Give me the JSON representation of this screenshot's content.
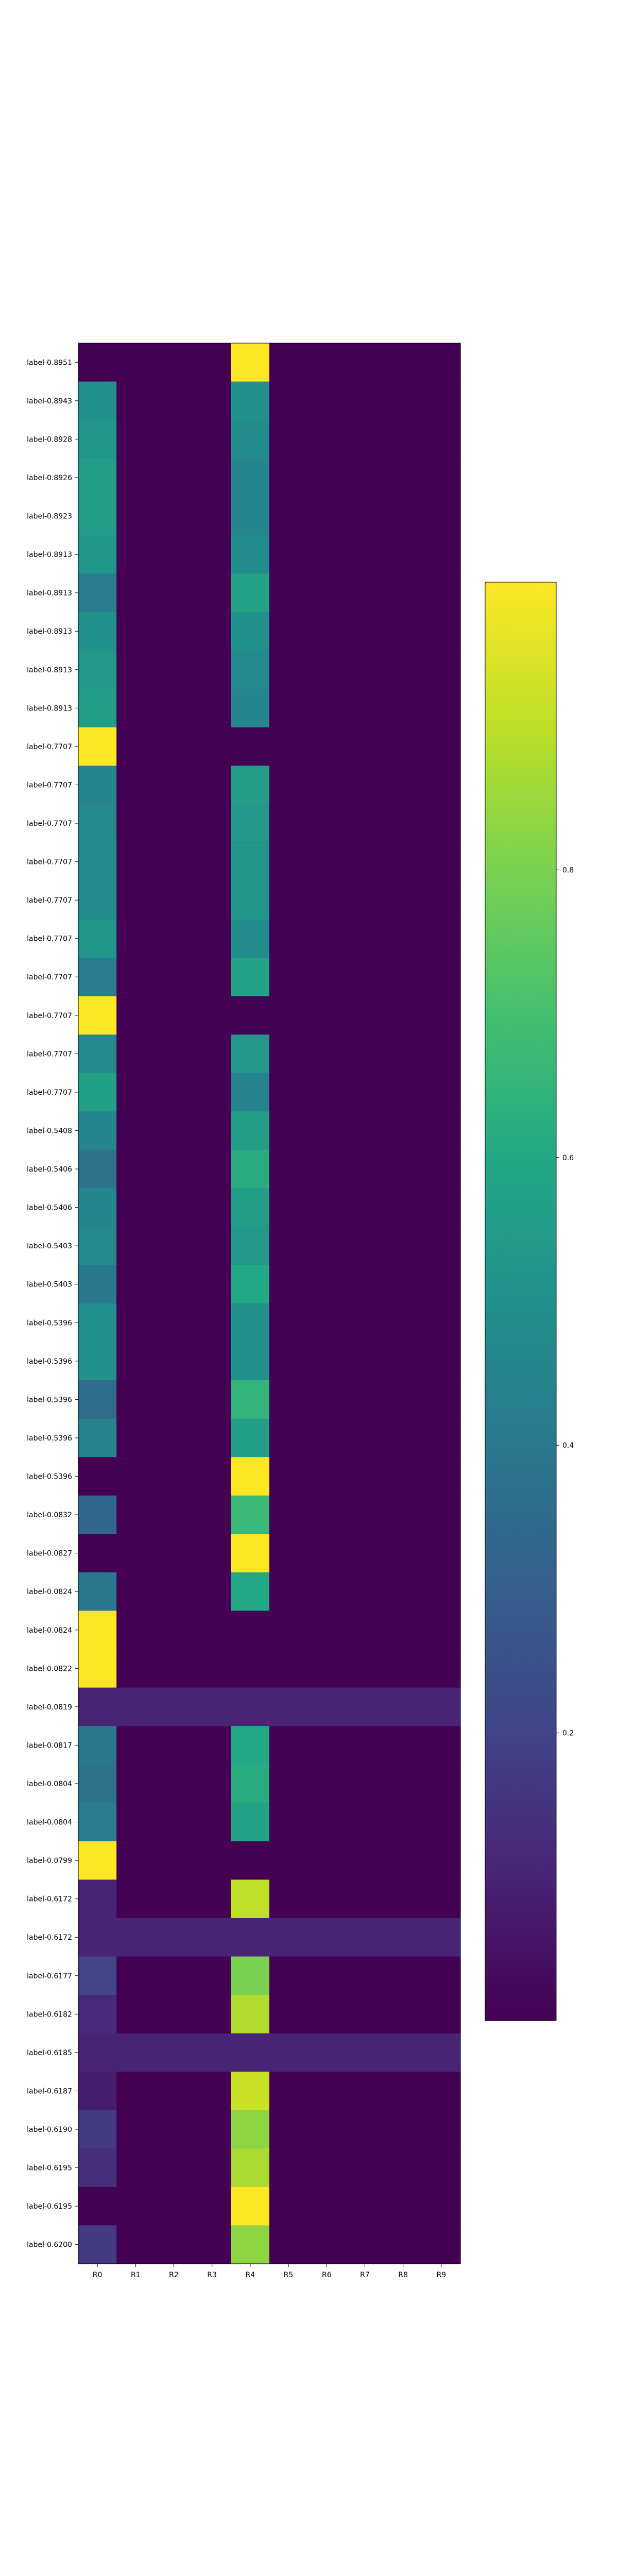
{
  "chart_data": {
    "type": "heatmap",
    "title": "",
    "xlabel": "",
    "ylabel": "",
    "colormap": "viridis",
    "colorbar": {
      "range": [
        0.0,
        1.0
      ],
      "ticks": [
        0.2,
        0.4,
        0.6,
        0.8
      ]
    },
    "x": [
      "R0",
      "R1",
      "R2",
      "R3",
      "R4",
      "R5",
      "R6",
      "R7",
      "R8",
      "R9"
    ],
    "y": [
      "label-0.8951",
      "label-0.8943",
      "label-0.8928",
      "label-0.8926",
      "label-0.8923",
      "label-0.8913",
      "label-0.8913",
      "label-0.8913",
      "label-0.8913",
      "label-0.8913",
      "label-0.7707",
      "label-0.7707",
      "label-0.7707",
      "label-0.7707",
      "label-0.7707",
      "label-0.7707",
      "label-0.7707",
      "label-0.7707",
      "label-0.7707",
      "label-0.7707",
      "label-0.5408",
      "label-0.5406",
      "label-0.5406",
      "label-0.5403",
      "label-0.5403",
      "label-0.5396",
      "label-0.5396",
      "label-0.5396",
      "label-0.5396",
      "label-0.5396",
      "label-0.0832",
      "label-0.0827",
      "label-0.0824",
      "label-0.0824",
      "label-0.0822",
      "label-0.0819",
      "label-0.0817",
      "label-0.0804",
      "label-0.0804",
      "label-0.0799",
      "label-0.6172",
      "label-0.6172",
      "label-0.6177",
      "label-0.6182",
      "label-0.6185",
      "label-0.6187",
      "label-0.6190",
      "label-0.6195",
      "label-0.6195",
      "label-0.6200"
    ],
    "values": [
      [
        0.0,
        0,
        0,
        0,
        1.0,
        0,
        0,
        0,
        0,
        0
      ],
      [
        0.5,
        0,
        0,
        0,
        0.5,
        0,
        0,
        0,
        0,
        0
      ],
      [
        0.52,
        0,
        0,
        0,
        0.48,
        0,
        0,
        0,
        0,
        0
      ],
      [
        0.55,
        0,
        0,
        0,
        0.45,
        0,
        0,
        0,
        0,
        0
      ],
      [
        0.55,
        0,
        0,
        0,
        0.45,
        0,
        0,
        0,
        0,
        0
      ],
      [
        0.52,
        0,
        0,
        0,
        0.48,
        0,
        0,
        0,
        0,
        0
      ],
      [
        0.42,
        0,
        0,
        0,
        0.58,
        0,
        0,
        0,
        0,
        0
      ],
      [
        0.5,
        0,
        0,
        0,
        0.5,
        0,
        0,
        0,
        0,
        0
      ],
      [
        0.53,
        0,
        0,
        0,
        0.47,
        0,
        0,
        0,
        0,
        0
      ],
      [
        0.55,
        0,
        0,
        0,
        0.45,
        0,
        0,
        0,
        0,
        0
      ],
      [
        1.0,
        0,
        0,
        0,
        0.0,
        0,
        0,
        0,
        0,
        0
      ],
      [
        0.45,
        0,
        0,
        0,
        0.55,
        0,
        0,
        0,
        0,
        0
      ],
      [
        0.47,
        0,
        0,
        0,
        0.53,
        0,
        0,
        0,
        0,
        0
      ],
      [
        0.48,
        0,
        0,
        0,
        0.52,
        0,
        0,
        0,
        0,
        0
      ],
      [
        0.48,
        0,
        0,
        0,
        0.52,
        0,
        0,
        0,
        0,
        0
      ],
      [
        0.52,
        0,
        0,
        0,
        0.48,
        0,
        0,
        0,
        0,
        0
      ],
      [
        0.42,
        0,
        0,
        0,
        0.58,
        0,
        0,
        0,
        0,
        0
      ],
      [
        1.0,
        0,
        0,
        0,
        0.0,
        0,
        0,
        0,
        0,
        0
      ],
      [
        0.47,
        0,
        0,
        0,
        0.53,
        0,
        0,
        0,
        0,
        0
      ],
      [
        0.56,
        0,
        0,
        0,
        0.44,
        0,
        0,
        0,
        0,
        0
      ],
      [
        0.45,
        0,
        0,
        0,
        0.55,
        0,
        0,
        0,
        0,
        0
      ],
      [
        0.38,
        0,
        0,
        0,
        0.62,
        0,
        0,
        0,
        0,
        0
      ],
      [
        0.45,
        0,
        0,
        0,
        0.55,
        0,
        0,
        0,
        0,
        0
      ],
      [
        0.47,
        0,
        0,
        0,
        0.53,
        0,
        0,
        0,
        0,
        0
      ],
      [
        0.4,
        0,
        0,
        0,
        0.6,
        0,
        0,
        0,
        0,
        0
      ],
      [
        0.5,
        0,
        0,
        0,
        0.5,
        0,
        0,
        0,
        0,
        0
      ],
      [
        0.5,
        0,
        0,
        0,
        0.5,
        0,
        0,
        0,
        0,
        0
      ],
      [
        0.35,
        0,
        0,
        0,
        0.65,
        0,
        0,
        0,
        0,
        0
      ],
      [
        0.44,
        0,
        0,
        0,
        0.56,
        0,
        0,
        0,
        0,
        0
      ],
      [
        0.0,
        0,
        0,
        0,
        1.0,
        0,
        0,
        0,
        0,
        0
      ],
      [
        0.33,
        0,
        0,
        0,
        0.67,
        0,
        0,
        0,
        0,
        0
      ],
      [
        0.0,
        0,
        0,
        0,
        1.0,
        0,
        0,
        0,
        0,
        0
      ],
      [
        0.4,
        0,
        0,
        0,
        0.6,
        0,
        0,
        0,
        0,
        0
      ],
      [
        1.0,
        0,
        0,
        0,
        0.0,
        0,
        0,
        0,
        0,
        0
      ],
      [
        1.0,
        0,
        0,
        0,
        0.0,
        0,
        0,
        0,
        0,
        0
      ],
      [
        0.1,
        0.1,
        0.1,
        0.1,
        0.1,
        0.1,
        0.1,
        0.1,
        0.1,
        0.1
      ],
      [
        0.4,
        0,
        0,
        0,
        0.6,
        0,
        0,
        0,
        0,
        0
      ],
      [
        0.38,
        0,
        0,
        0,
        0.62,
        0,
        0,
        0,
        0,
        0
      ],
      [
        0.42,
        0,
        0,
        0,
        0.58,
        0,
        0,
        0,
        0,
        0
      ],
      [
        1.0,
        0,
        0,
        0,
        0.0,
        0,
        0,
        0,
        0,
        0
      ],
      [
        0.1,
        0,
        0,
        0,
        0.9,
        0,
        0,
        0,
        0,
        0
      ],
      [
        0.1,
        0.1,
        0.1,
        0.1,
        0.1,
        0.1,
        0.1,
        0.1,
        0.1,
        0.1
      ],
      [
        0.2,
        0,
        0,
        0,
        0.8,
        0,
        0,
        0,
        0,
        0
      ],
      [
        0.12,
        0,
        0,
        0,
        0.88,
        0,
        0,
        0,
        0,
        0
      ],
      [
        0.1,
        0.1,
        0.1,
        0.1,
        0.1,
        0.1,
        0.1,
        0.1,
        0.1,
        0.1
      ],
      [
        0.08,
        0,
        0,
        0,
        0.92,
        0,
        0,
        0,
        0,
        0
      ],
      [
        0.17,
        0,
        0,
        0,
        0.83,
        0,
        0,
        0,
        0,
        0
      ],
      [
        0.13,
        0,
        0,
        0,
        0.87,
        0,
        0,
        0,
        0,
        0
      ],
      [
        0.0,
        0,
        0,
        0,
        1.0,
        0,
        0,
        0,
        0,
        0
      ],
      [
        0.17,
        0,
        0,
        0,
        0.83,
        0,
        0,
        0,
        0,
        0
      ]
    ]
  }
}
